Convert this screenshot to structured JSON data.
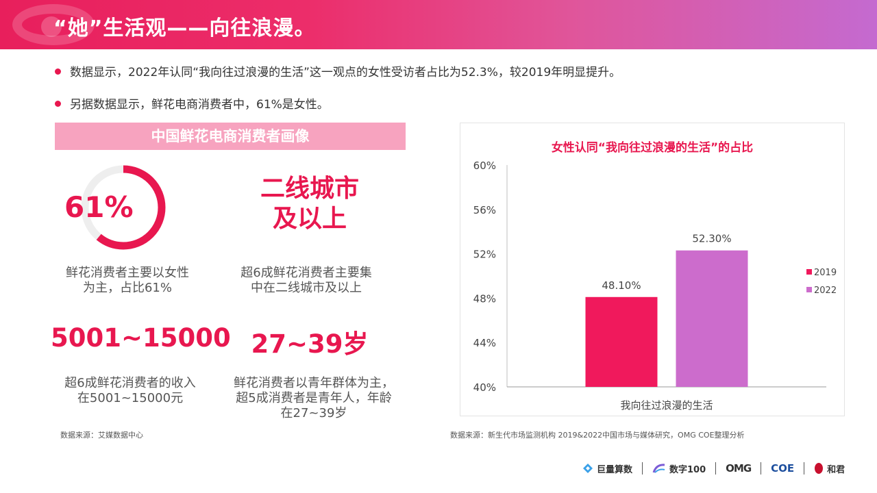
{
  "header": {
    "title": "“她”生活观——向往浪漫。"
  },
  "bullets": [
    "数据显示，2022年认同“我向往过浪漫的生活”这一观点的女性受访者占比为52.3%，较2019年明显提升。",
    "另据数据显示，鲜花电商消费者中，61%是女性。"
  ],
  "portrait": {
    "title": "中国鲜花电商消费者画像",
    "female_share": {
      "value": "61%",
      "fraction": 0.61,
      "caption_line1": "鲜花消费者主要以女性",
      "caption_line2": "为主，占比61%"
    },
    "city": {
      "line1": "二线城市",
      "line2": "及以上",
      "caption_line1": "超6成鲜花消费者主要集",
      "caption_line2": "中在二线城市及以上"
    },
    "income": {
      "value": "5001~15000",
      "caption_line1": "超6成鲜花消费者的收入",
      "caption_line2": "在5001~15000元"
    },
    "age": {
      "value": "27~39岁",
      "caption_line1": "鲜花消费者以青年群体为主，",
      "caption_line2": "超5成消费者是青年人，年龄",
      "caption_line3": "在27~39岁"
    },
    "source": "数据来源：艾媒数据中心"
  },
  "chart_source": "数据来源：新生代市场监测机构 2019&2022中国市场与媒体研究，OMG COE整理分析",
  "colors": {
    "accent": "#e8174f",
    "panel": "#f7a3bf",
    "series_2019": "#f0195c",
    "series_2022": "#cc6ccc"
  },
  "chart_data": {
    "type": "bar",
    "title": "女性认同“我向往过浪漫的生活”的占比",
    "categories": [
      "我向往过浪漫的生活"
    ],
    "series": [
      {
        "name": "2019",
        "values": [
          48.1
        ],
        "label": "48.10%"
      },
      {
        "name": "2022",
        "values": [
          52.3
        ],
        "label": "52.30%"
      }
    ],
    "ylim": [
      40,
      60
    ],
    "yticks": [
      "40%",
      "44%",
      "48%",
      "52%",
      "56%",
      "60%"
    ],
    "ytick_values": [
      40,
      44,
      48,
      52,
      56,
      60
    ],
    "legend": "right",
    "grid": false
  },
  "footer": {
    "logos": [
      {
        "name": "juliang-logo",
        "text": "巨量算数"
      },
      {
        "name": "shuzi100-logo",
        "text": "数字100"
      },
      {
        "name": "omg-logo",
        "text": "OMG"
      },
      {
        "name": "coe-logo",
        "text": "COE"
      },
      {
        "name": "hejun-logo",
        "text": "和君"
      }
    ]
  }
}
